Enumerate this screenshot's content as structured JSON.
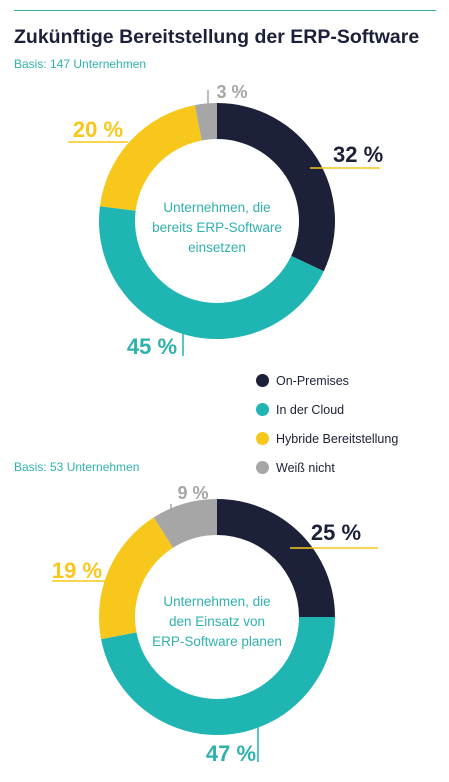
{
  "title": "Zukünftige Bereitstellung der ERP-Software",
  "colors": {
    "on_premises": "#1c2038",
    "cloud": "#1fb5b2",
    "hybrid": "#f7c71b",
    "unknown": "#a6a6a6",
    "accent": "#2fb1ae"
  },
  "legend": [
    {
      "label": "On-Premises",
      "color": "#1c2038"
    },
    {
      "label": "In der Cloud",
      "color": "#1fb5b2"
    },
    {
      "label": "Hybride Bereitstellung",
      "color": "#f7c71b"
    },
    {
      "label": "Weiß nicht",
      "color": "#a6a6a6"
    }
  ],
  "chart_data": [
    {
      "type": "pie",
      "variant": "donut",
      "basis": "Basis: 147 Unternehmen",
      "center_label": [
        "Unternehmen, die",
        "bereits ERP-Software",
        "einsetzen"
      ],
      "slices": [
        {
          "name": "On-Premises",
          "value": 32,
          "label": "32 %",
          "color": "#1c2038"
        },
        {
          "name": "In der Cloud",
          "value": 45,
          "label": "45 %",
          "color": "#1fb5b2"
        },
        {
          "name": "Hybride Bereitstellung",
          "value": 20,
          "label": "20 %",
          "color": "#f7c71b"
        },
        {
          "name": "Weiß nicht",
          "value": 3,
          "label": "3 %",
          "color": "#a6a6a6"
        }
      ]
    },
    {
      "type": "pie",
      "variant": "donut",
      "basis": "Basis: 53 Unternehmen",
      "center_label": [
        "Unternehmen, die",
        "den Einsatz von",
        "ERP-Software planen"
      ],
      "slices": [
        {
          "name": "On-Premises",
          "value": 25,
          "label": "25 %",
          "color": "#1c2038"
        },
        {
          "name": "In der Cloud",
          "value": 47,
          "label": "47 %",
          "color": "#1fb5b2"
        },
        {
          "name": "Hybride Bereitstellung",
          "value": 19,
          "label": "19 %",
          "color": "#f7c71b"
        },
        {
          "name": "Weiß nicht",
          "value": 9,
          "label": "9 %",
          "color": "#a6a6a6"
        }
      ]
    }
  ]
}
